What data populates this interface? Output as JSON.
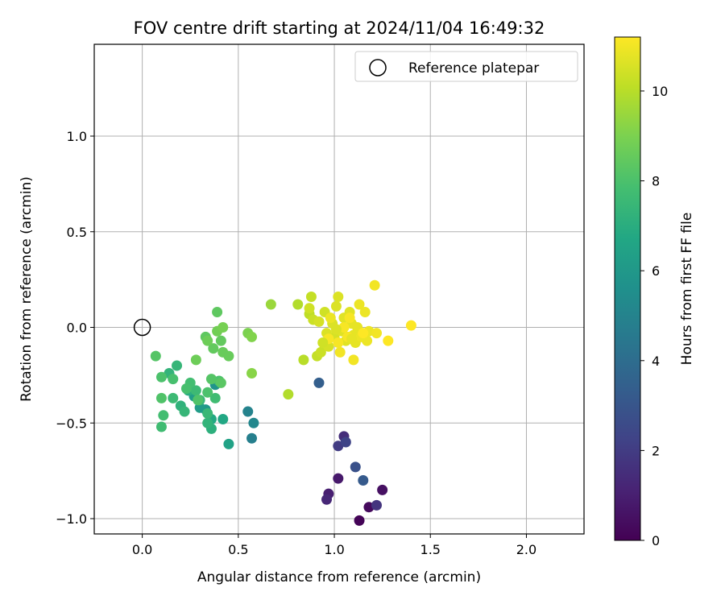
{
  "chart_data": {
    "type": "scatter",
    "title": "FOV centre drift starting at 2024/11/04 16:49:32",
    "xlabel": "Angular distance from reference (arcmin)",
    "ylabel": "Rotation from reference (arcmin)",
    "xlim": [
      -0.25,
      2.3
    ],
    "ylim": [
      -1.08,
      1.48
    ],
    "xticks": [
      0.0,
      0.5,
      1.0,
      1.5,
      2.0
    ],
    "xtick_labels": [
      "0.0",
      "0.5",
      "1.0",
      "1.5",
      "2.0"
    ],
    "yticks": [
      -1.0,
      -0.5,
      0.0,
      0.5,
      1.0
    ],
    "ytick_labels": [
      "−1.0",
      "−0.5",
      "0.0",
      "0.5",
      "1.0"
    ],
    "grid": true,
    "legend": {
      "position": "top-right",
      "entries": [
        "Reference platepar"
      ]
    },
    "reference": {
      "x": 0.0,
      "y": 0.0
    },
    "colorbar": {
      "label": "Hours from first FF file",
      "range": [
        0,
        11.2
      ],
      "ticks": [
        0,
        2,
        4,
        6,
        8,
        10
      ],
      "tick_labels": [
        "0",
        "2",
        "4",
        "6",
        "8",
        "10"
      ],
      "colormap": "viridis"
    },
    "points": [
      [
        1.13,
        -1.01,
        0.1
      ],
      [
        1.18,
        -0.94,
        0.3
      ],
      [
        1.25,
        -0.85,
        0.5
      ],
      [
        1.02,
        -0.79,
        0.8
      ],
      [
        0.97,
        -0.87,
        1.0
      ],
      [
        0.96,
        -0.9,
        1.3
      ],
      [
        1.05,
        -0.57,
        1.5
      ],
      [
        1.22,
        -0.93,
        1.7
      ],
      [
        1.02,
        -0.62,
        2.0
      ],
      [
        1.06,
        -0.6,
        2.3
      ],
      [
        1.11,
        -0.73,
        2.8
      ],
      [
        1.15,
        -0.8,
        3.2
      ],
      [
        0.92,
        -0.29,
        3.4
      ],
      [
        0.57,
        -0.58,
        4.8
      ],
      [
        0.55,
        -0.44,
        5.0
      ],
      [
        0.58,
        -0.5,
        5.2
      ],
      [
        0.38,
        -0.3,
        5.8
      ],
      [
        0.33,
        -0.43,
        6.0
      ],
      [
        0.3,
        -0.42,
        6.2
      ],
      [
        0.27,
        -0.36,
        6.3
      ],
      [
        0.45,
        -0.61,
        6.5
      ],
      [
        0.42,
        -0.48,
        6.7
      ],
      [
        0.36,
        -0.48,
        6.8
      ],
      [
        0.24,
        -0.33,
        7.0
      ],
      [
        0.36,
        -0.53,
        7.1
      ],
      [
        0.2,
        -0.41,
        7.2
      ],
      [
        0.14,
        -0.24,
        7.3
      ],
      [
        0.34,
        -0.5,
        7.3
      ],
      [
        0.22,
        -0.44,
        7.4
      ],
      [
        0.18,
        -0.2,
        7.4
      ],
      [
        0.3,
        -0.38,
        7.5
      ],
      [
        0.34,
        -0.45,
        7.5
      ],
      [
        0.16,
        -0.37,
        7.6
      ],
      [
        0.28,
        -0.33,
        7.6
      ],
      [
        0.38,
        -0.37,
        7.7
      ],
      [
        0.1,
        -0.52,
        7.7
      ],
      [
        0.25,
        -0.29,
        7.8
      ],
      [
        0.11,
        -0.46,
        7.8
      ],
      [
        0.16,
        -0.27,
        7.9
      ],
      [
        0.23,
        -0.32,
        7.9
      ],
      [
        0.34,
        -0.34,
        8.0
      ],
      [
        0.1,
        -0.26,
        8.0
      ],
      [
        0.4,
        -0.28,
        8.0
      ],
      [
        0.1,
        -0.37,
        8.1
      ],
      [
        0.29,
        -0.38,
        8.1
      ],
      [
        0.07,
        -0.15,
        8.2
      ],
      [
        0.36,
        -0.27,
        8.2
      ],
      [
        0.41,
        -0.29,
        8.3
      ],
      [
        0.33,
        -0.05,
        8.4
      ],
      [
        0.39,
        0.08,
        8.4
      ],
      [
        0.37,
        -0.11,
        8.5
      ],
      [
        0.41,
        -0.07,
        8.5
      ],
      [
        0.42,
        -0.13,
        8.6
      ],
      [
        0.45,
        -0.15,
        8.6
      ],
      [
        0.28,
        -0.17,
        8.7
      ],
      [
        0.34,
        -0.07,
        8.7
      ],
      [
        0.39,
        -0.02,
        8.8
      ],
      [
        0.42,
        0.0,
        8.9
      ],
      [
        0.55,
        -0.03,
        9.0
      ],
      [
        0.57,
        -0.05,
        9.1
      ],
      [
        0.57,
        -0.24,
        9.2
      ],
      [
        0.67,
        0.12,
        9.5
      ],
      [
        0.76,
        -0.35,
        9.9
      ],
      [
        0.81,
        0.12,
        9.9
      ],
      [
        0.84,
        -0.17,
        10.0
      ],
      [
        0.87,
        0.07,
        10.1
      ],
      [
        0.88,
        0.16,
        10.2
      ],
      [
        0.91,
        -0.15,
        10.2
      ],
      [
        0.89,
        0.04,
        10.3
      ],
      [
        0.93,
        -0.13,
        10.3
      ],
      [
        0.87,
        0.1,
        10.4
      ],
      [
        0.95,
        0.08,
        10.4
      ],
      [
        0.97,
        -0.1,
        10.5
      ],
      [
        0.92,
        0.03,
        10.5
      ],
      [
        1.0,
        -0.05,
        10.5
      ],
      [
        0.96,
        -0.03,
        10.6
      ],
      [
        0.99,
        0.02,
        10.6
      ],
      [
        1.01,
        0.11,
        10.6
      ],
      [
        1.02,
        0.16,
        10.6
      ],
      [
        1.04,
        -0.02,
        10.7
      ],
      [
        1.05,
        0.05,
        10.7
      ],
      [
        1.06,
        -0.07,
        10.7
      ],
      [
        1.08,
        0.08,
        10.7
      ],
      [
        1.09,
        0.02,
        10.8
      ],
      [
        1.1,
        -0.04,
        10.8
      ],
      [
        1.11,
        -0.08,
        10.8
      ],
      [
        1.12,
        0.0,
        10.8
      ],
      [
        1.14,
        -0.05,
        10.9
      ],
      [
        1.13,
        0.12,
        10.9
      ],
      [
        1.16,
        0.08,
        10.9
      ],
      [
        1.17,
        -0.07,
        10.9
      ],
      [
        1.18,
        -0.02,
        10.9
      ],
      [
        1.21,
        0.22,
        11.0
      ],
      [
        1.22,
        -0.03,
        11.0
      ],
      [
        1.1,
        -0.17,
        11.0
      ],
      [
        1.03,
        -0.13,
        11.0
      ],
      [
        1.07,
        -0.05,
        11.1
      ],
      [
        0.97,
        -0.06,
        11.1
      ],
      [
        1.02,
        -0.08,
        11.1
      ],
      [
        1.05,
        0.0,
        11.1
      ],
      [
        1.08,
        0.05,
        11.1
      ],
      [
        1.15,
        -0.03,
        11.2
      ],
      [
        1.28,
        -0.07,
        11.2
      ],
      [
        1.4,
        0.01,
        11.2
      ],
      [
        0.98,
        0.05,
        10.9
      ],
      [
        1.09,
        -0.06,
        10.8
      ],
      [
        1.01,
        -0.01,
        10.6
      ],
      [
        0.94,
        -0.08,
        10.4
      ]
    ]
  }
}
